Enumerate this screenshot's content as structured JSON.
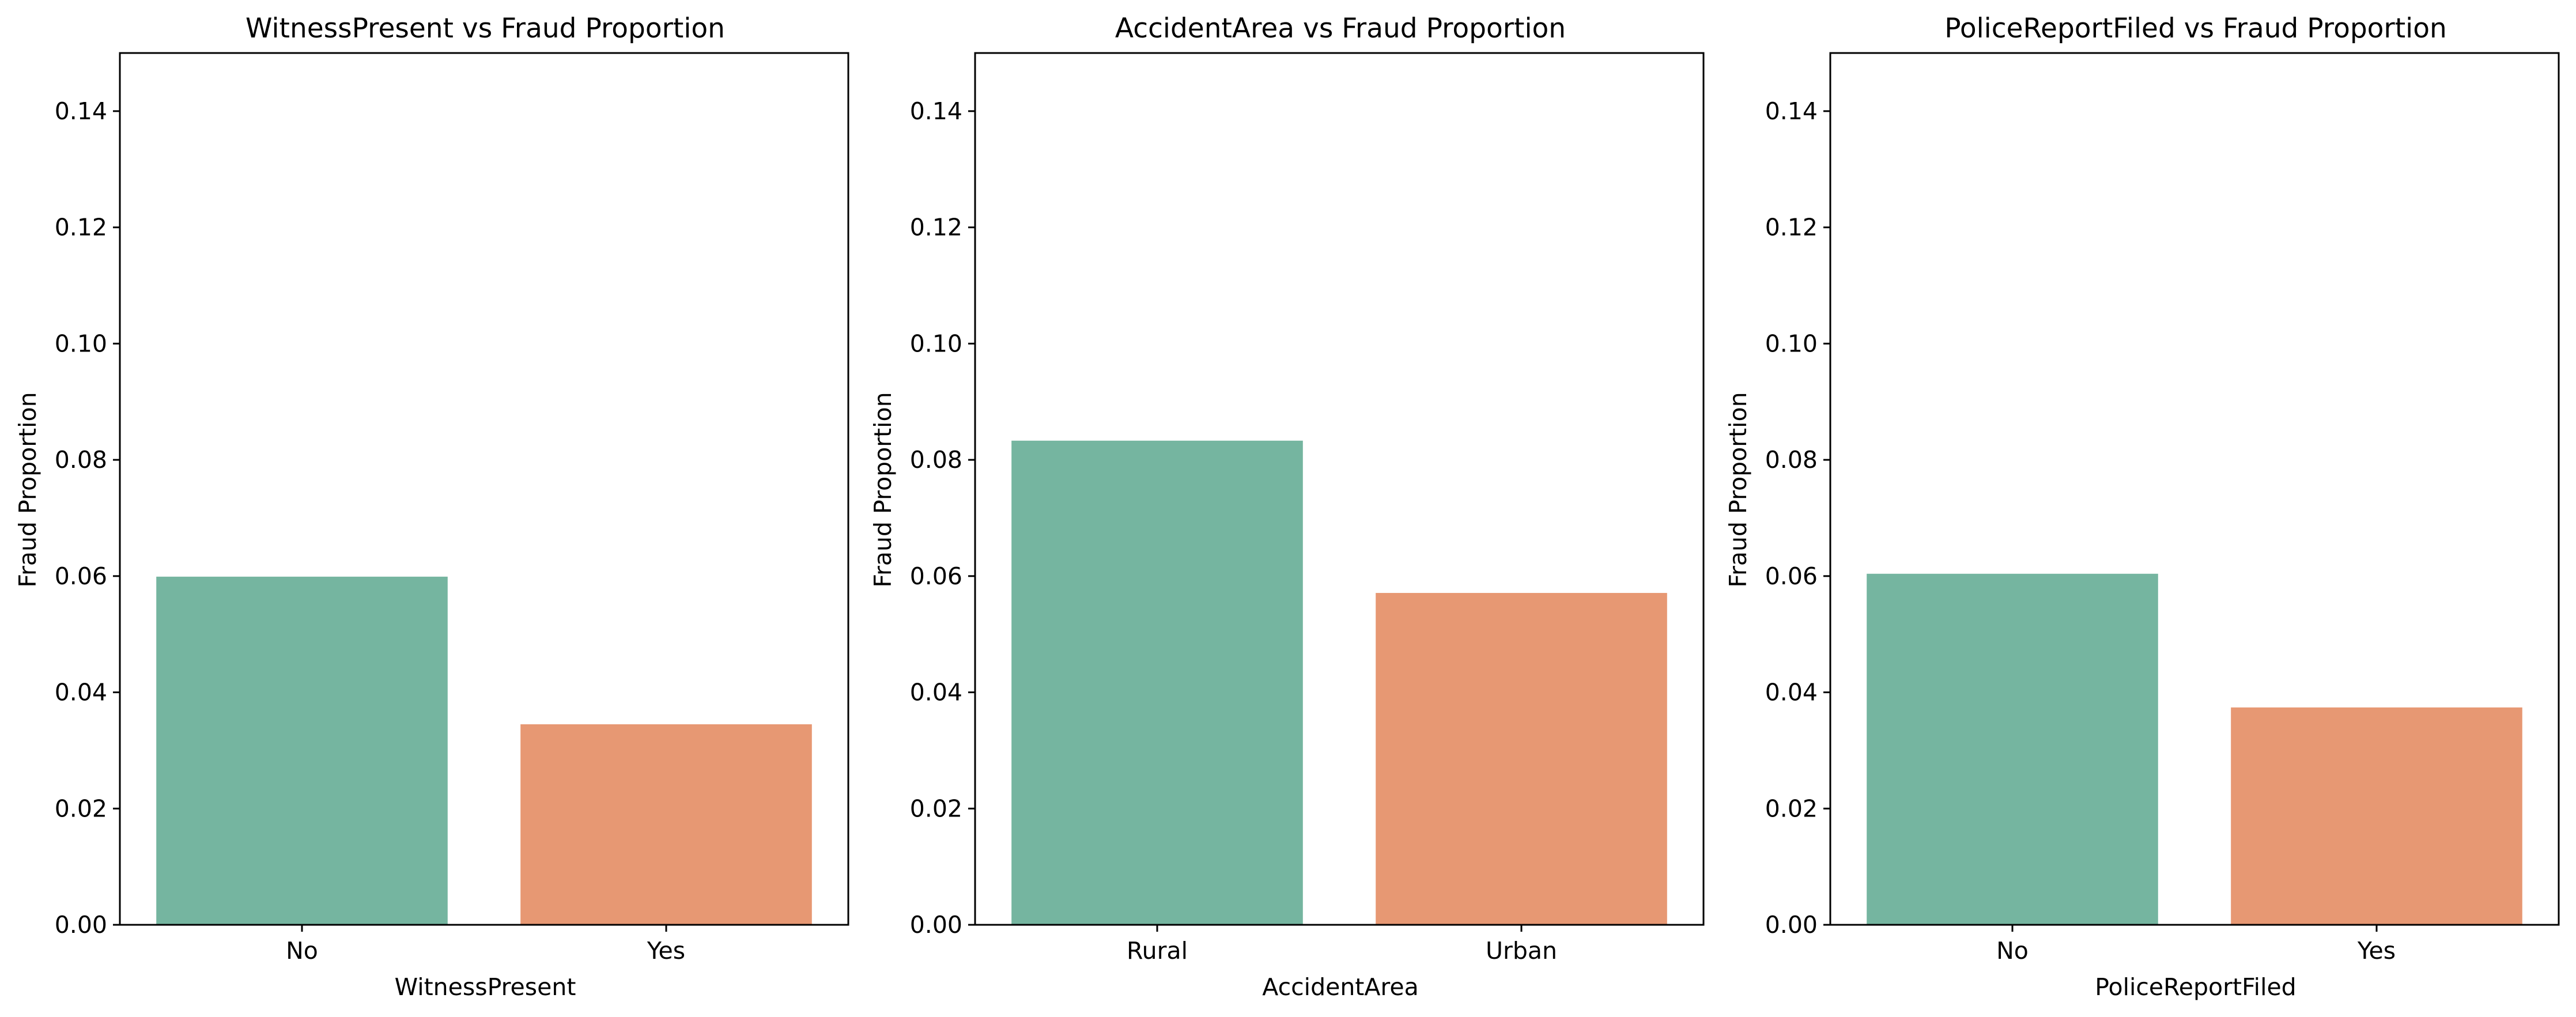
{
  "colors": {
    "bar_first": "#75B5A0",
    "bar_second": "#E79873",
    "axis": "#000000",
    "background": "#ffffff"
  },
  "chart_data": [
    {
      "type": "bar",
      "title": "WitnessPresent vs Fraud Proportion",
      "xlabel": "WitnessPresent",
      "ylabel": "Fraud Proportion",
      "categories": [
        "No",
        "Yes"
      ],
      "values": [
        0.0599,
        0.0345
      ],
      "ylim": [
        0,
        0.15
      ],
      "yticks": [
        "0.00",
        "0.02",
        "0.04",
        "0.06",
        "0.08",
        "0.10",
        "0.12",
        "0.14"
      ],
      "grid": false,
      "legend": "none"
    },
    {
      "type": "bar",
      "title": "AccidentArea vs Fraud Proportion",
      "xlabel": "AccidentArea",
      "ylabel": "Fraud Proportion",
      "categories": [
        "Rural",
        "Urban"
      ],
      "values": [
        0.0833,
        0.0571
      ],
      "ylim": [
        0,
        0.15
      ],
      "yticks": [
        "0.00",
        "0.02",
        "0.04",
        "0.06",
        "0.08",
        "0.10",
        "0.12",
        "0.14"
      ],
      "grid": false,
      "legend": "none"
    },
    {
      "type": "bar",
      "title": "PoliceReportFiled vs Fraud Proportion",
      "xlabel": "PoliceReportFiled",
      "ylabel": "Fraud Proportion",
      "categories": [
        "No",
        "Yes"
      ],
      "values": [
        0.0604,
        0.0374
      ],
      "ylim": [
        0,
        0.15
      ],
      "yticks": [
        "0.00",
        "0.02",
        "0.04",
        "0.06",
        "0.08",
        "0.10",
        "0.12",
        "0.14"
      ],
      "grid": false,
      "legend": "none"
    }
  ]
}
